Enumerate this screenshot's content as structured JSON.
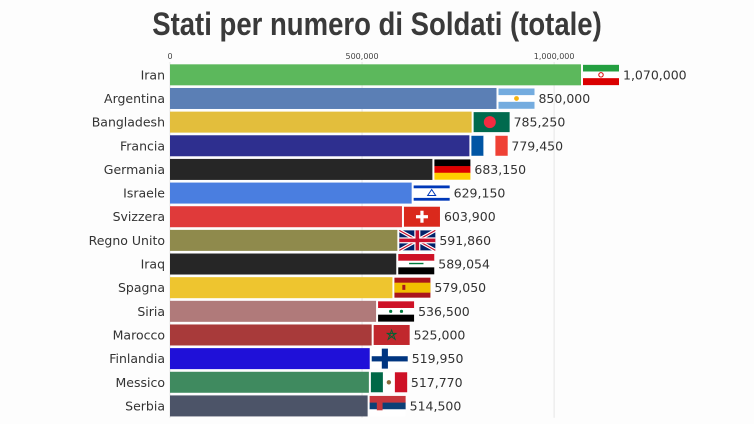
{
  "chart_data": {
    "type": "bar",
    "orientation": "horizontal",
    "title": "Stati per numero di Soldati (totale)",
    "xlabel": "",
    "ylabel": "",
    "xlim": [
      0,
      1070000
    ],
    "ticks": [
      0,
      500000,
      1000000
    ],
    "tick_labels": [
      "0",
      "500,000",
      "1,000,000"
    ],
    "grid": true,
    "categories": [
      "Iran",
      "Argentina",
      "Bangladesh",
      "Francia",
      "Germania",
      "Israele",
      "Svizzera",
      "Regno Unito",
      "Iraq",
      "Spagna",
      "Siria",
      "Marocco",
      "Finlandia",
      "Messico",
      "Serbia"
    ],
    "values": [
      1070000,
      850000,
      785250,
      779450,
      683150,
      629150,
      603900,
      591860,
      589054,
      579050,
      536500,
      525000,
      519950,
      517770,
      514500
    ],
    "value_labels": [
      "1,070,000",
      "850,000",
      "785,250",
      "779,450",
      "683,150",
      "629,150",
      "603,900",
      "591,860",
      "589,054",
      "579,050",
      "536,500",
      "525,000",
      "519,950",
      "517,770",
      "514,500"
    ],
    "colors": [
      "#5cb85c",
      "#5b7fb5",
      "#e3be3c",
      "#2e2f8f",
      "#262626",
      "#4a7ee0",
      "#e03a3a",
      "#8f8a4c",
      "#262626",
      "#eec52f",
      "#b07a7a",
      "#a83a3a",
      "#1f10d8",
      "#3f8a5f",
      "#4c5468"
    ],
    "flags": [
      "iran-flag",
      "argentina-flag",
      "bangladesh-flag",
      "france-flag",
      "germany-flag",
      "israel-flag",
      "switzerland-flag",
      "uk-flag",
      "iraq-flag",
      "spain-flag",
      "syria-flag",
      "morocco-flag",
      "finland-flag",
      "mexico-flag",
      "serbia-flag"
    ]
  }
}
